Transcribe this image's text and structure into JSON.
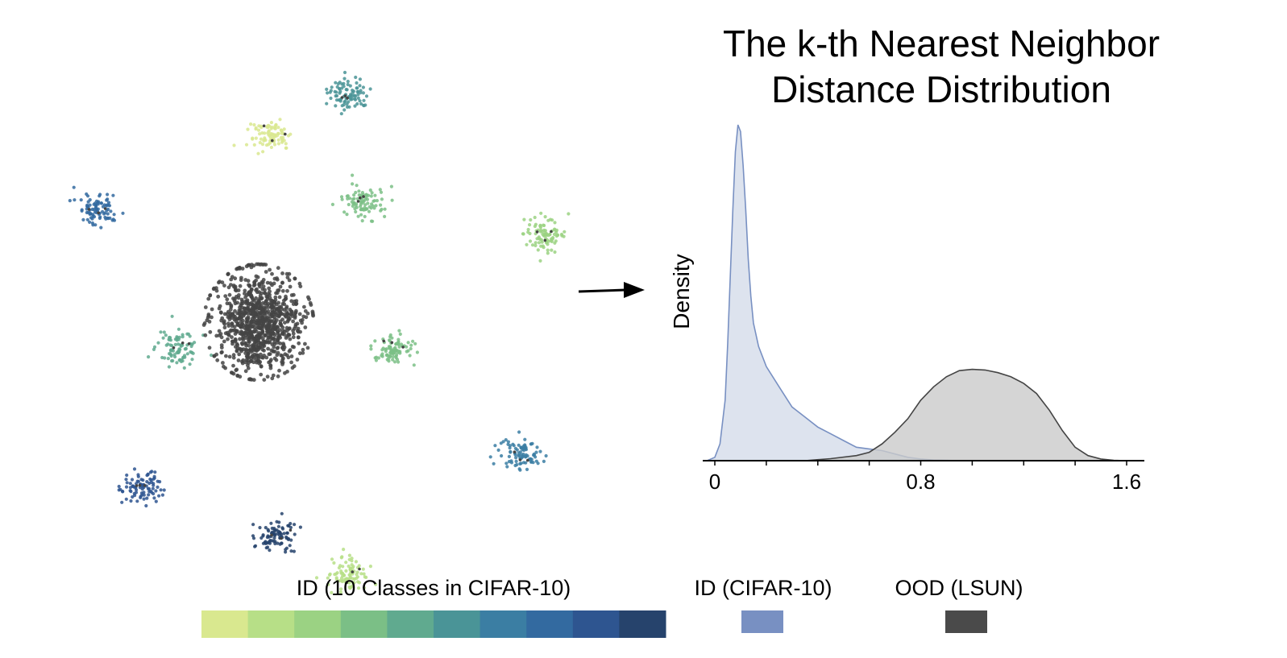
{
  "chart_data": [
    {
      "type": "scatter",
      "description_kind": "embedding-clusters",
      "legend_label": "ID (10 Classes in CIFAR-10)",
      "class_colors": [
        "#d9e88f",
        "#b7df87",
        "#9bd283",
        "#7bbf86",
        "#60aa8f",
        "#4a9497",
        "#3b7ea3",
        "#336aa0",
        "#2e5590",
        "#26436c"
      ],
      "ood_color": "#444444",
      "clusters": [
        {
          "group": "ID",
          "class_index": 5,
          "x": 0.1,
          "y": 0.86
        },
        {
          "group": "ID",
          "class_index": 0,
          "x": -0.16,
          "y": 0.7
        },
        {
          "group": "ID",
          "class_index": 3,
          "x": 0.15,
          "y": 0.45
        },
        {
          "group": "ID",
          "class_index": 2,
          "x": 0.76,
          "y": 0.33
        },
        {
          "group": "ID",
          "class_index": 7,
          "x": -0.74,
          "y": 0.43
        },
        {
          "group": "ID",
          "class_index": 4,
          "x": -0.47,
          "y": -0.1
        },
        {
          "group": "ID",
          "class_index": 3,
          "x": 0.25,
          "y": -0.1
        },
        {
          "group": "ID",
          "class_index": 6,
          "x": 0.68,
          "y": -0.5
        },
        {
          "group": "ID",
          "class_index": 8,
          "x": -0.6,
          "y": -0.62
        },
        {
          "group": "ID",
          "class_index": 9,
          "x": -0.14,
          "y": -0.8
        },
        {
          "group": "ID",
          "class_index": 1,
          "x": 0.1,
          "y": -0.95
        },
        {
          "group": "OOD",
          "x": -0.2,
          "y": 0.0
        }
      ]
    },
    {
      "type": "area",
      "title": "The k-th Nearest Neighbor Distance Distribution",
      "title_lines": [
        "The k-th Nearest Neighbor",
        "Distance Distribution"
      ],
      "xlabel": "",
      "ylabel": "Density",
      "xlim": [
        0,
        1.6
      ],
      "xticks": [
        0,
        0.8,
        1.6
      ],
      "xtick_labels": [
        "0",
        "0.8",
        "1.6"
      ],
      "grid": false,
      "series": [
        {
          "name": "ID (CIFAR-10)",
          "color": "#7890c2",
          "fill": "#d4dcea",
          "x": [
            -0.03,
            0.0,
            0.02,
            0.04,
            0.05,
            0.06,
            0.07,
            0.08,
            0.09,
            0.1,
            0.11,
            0.12,
            0.13,
            0.14,
            0.15,
            0.17,
            0.2,
            0.25,
            0.3,
            0.35,
            0.4,
            0.45,
            0.5,
            0.55,
            0.6,
            0.65,
            0.7,
            0.75,
            0.8,
            0.85,
            0.9,
            0.95
          ],
          "y": [
            0.0,
            0.01,
            0.05,
            0.18,
            0.35,
            0.55,
            0.75,
            0.92,
            1.0,
            0.98,
            0.88,
            0.75,
            0.6,
            0.49,
            0.41,
            0.34,
            0.28,
            0.22,
            0.16,
            0.13,
            0.1,
            0.08,
            0.06,
            0.04,
            0.035,
            0.03,
            0.02,
            0.01,
            0.005,
            0.002,
            0.001,
            0.0
          ]
        },
        {
          "name": "OOD (LSUN)",
          "color": "#444444",
          "fill": "#cbcbcb",
          "x": [
            0.35,
            0.45,
            0.55,
            0.6,
            0.65,
            0.7,
            0.75,
            0.8,
            0.85,
            0.9,
            0.95,
            1.0,
            1.05,
            1.1,
            1.15,
            1.2,
            1.25,
            1.3,
            1.35,
            1.4,
            1.45,
            1.5,
            1.55,
            1.6
          ],
          "y": [
            0.0,
            0.006,
            0.015,
            0.025,
            0.05,
            0.085,
            0.125,
            0.18,
            0.22,
            0.25,
            0.268,
            0.272,
            0.27,
            0.262,
            0.25,
            0.23,
            0.2,
            0.15,
            0.09,
            0.04,
            0.015,
            0.005,
            0.001,
            0.0
          ]
        }
      ]
    }
  ],
  "legend": {
    "id_classes_label": "ID (10 Classes in CIFAR-10)",
    "id_label": "ID (CIFAR-10)",
    "ood_label": "OOD (LSUN)",
    "id_swatch_color": "#7890c2",
    "ood_swatch_color": "#4a4a4a"
  }
}
